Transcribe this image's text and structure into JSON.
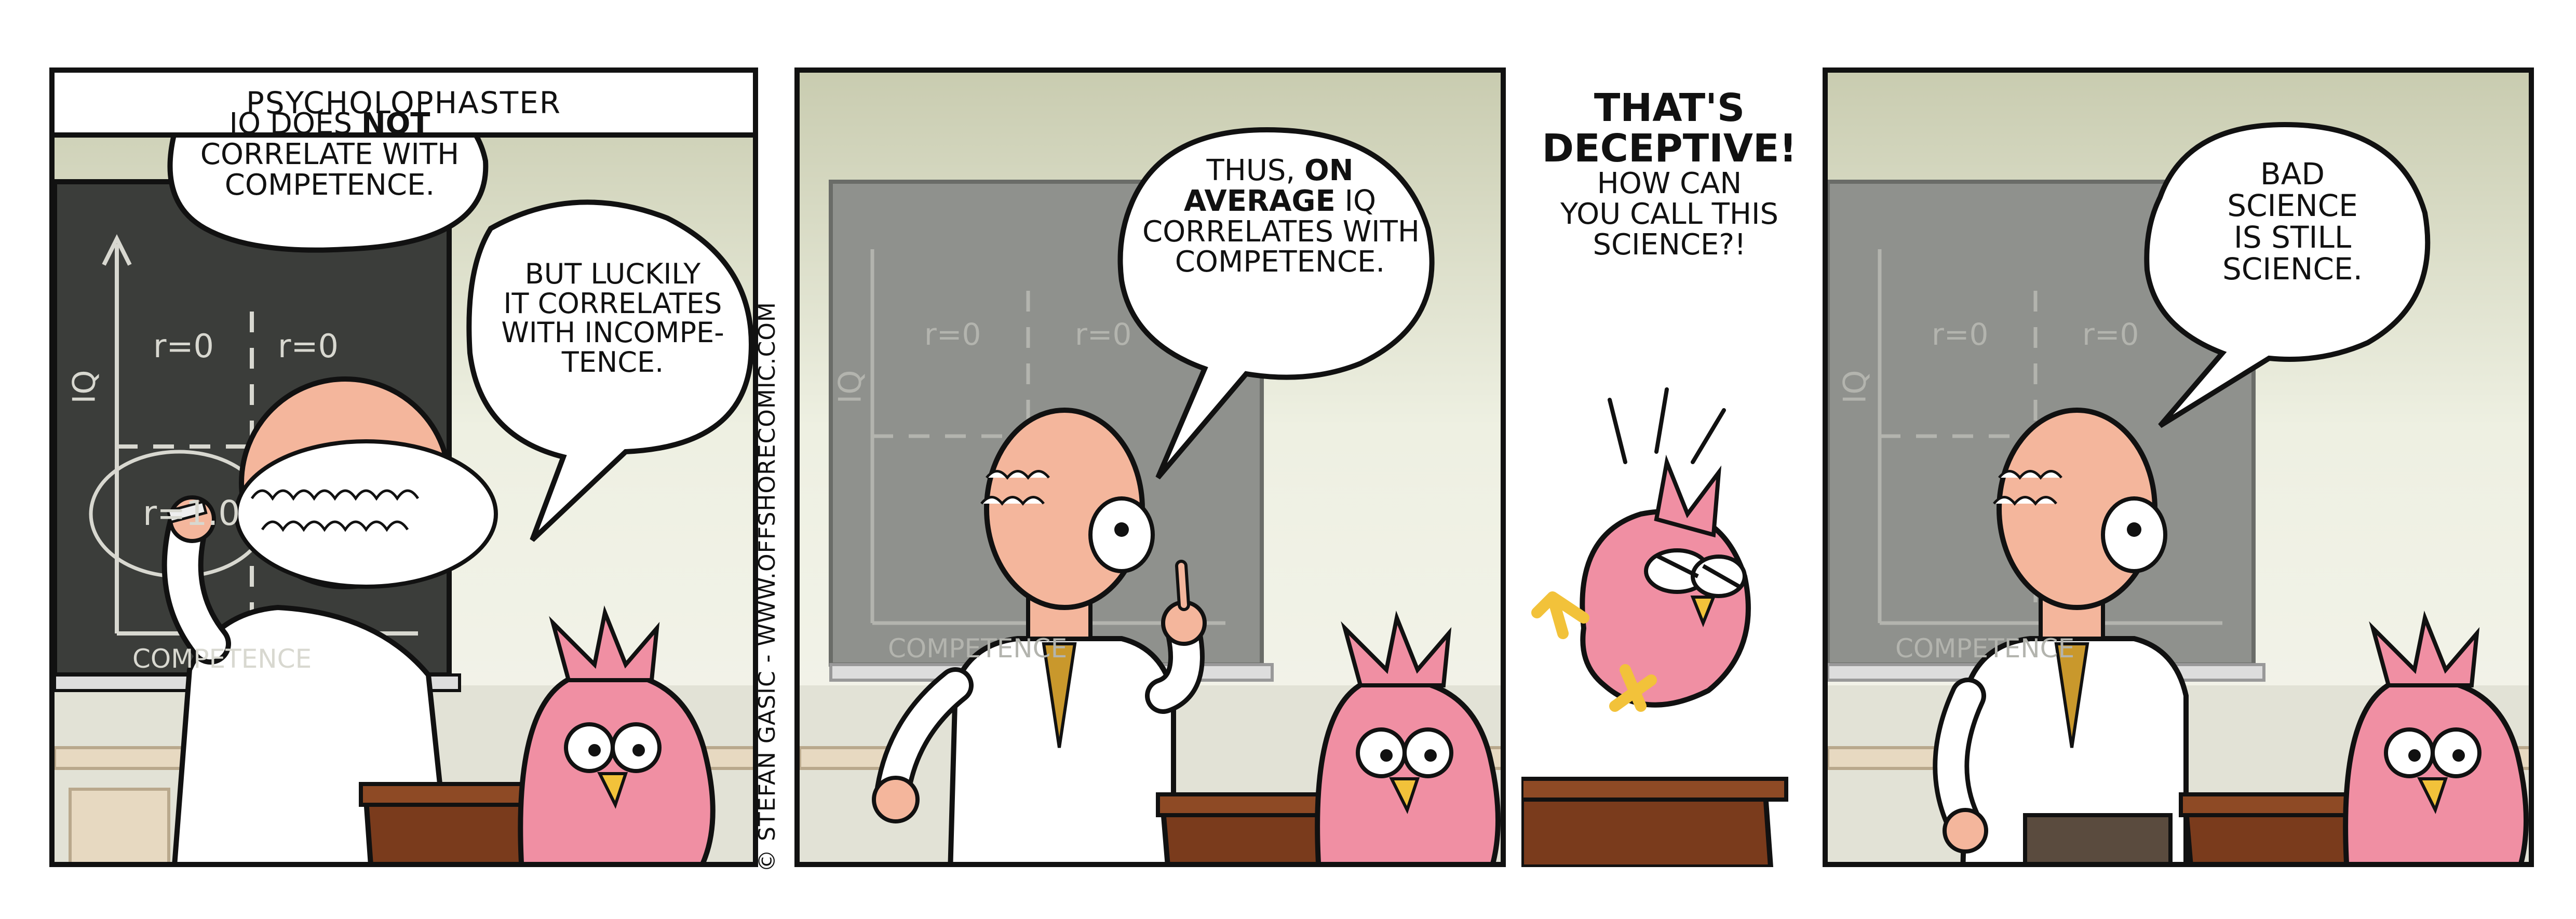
{
  "comic": {
    "title": "PSYCHOLOPHASTER",
    "credit": "© STEFAN GASIC - WWW.OFFSHORECOMIC.COM"
  },
  "panel1": {
    "board": {
      "axis_y": "IQ",
      "axis_x": "COMPETENCE",
      "r0a": "r=0",
      "r0b": "r=0",
      "r10": "r=1.0"
    },
    "bubble1": {
      "line1_a": "IQ DOES ",
      "line1_b": "NOT",
      "line2": "CORRELATE WITH",
      "line3": "COMPETENCE."
    },
    "bubble2": {
      "line1": "BUT LUCKILY",
      "line2": "IT CORRELATES",
      "line3": "WITH INCOMPE-",
      "line4": "TENCE."
    }
  },
  "panel2": {
    "board": {
      "axis_y": "IQ",
      "axis_x": "COMPETENCE",
      "r0a": "r=0",
      "r0b": "r=0"
    },
    "bubble": {
      "line1_a": "THUS, ",
      "line1_b": "ON",
      "line2_a": "AVERAGE",
      "line2_b": " IQ",
      "line3": "CORRELATES WITH",
      "line4": "COMPETENCE."
    }
  },
  "panel3": {
    "shout": {
      "line1": "THAT'S",
      "line2": "DECEPTIVE!",
      "line3": "HOW CAN",
      "line4": "YOU CALL THIS",
      "line5": "SCIENCE?!"
    }
  },
  "panel4": {
    "board": {
      "axis_y": "IQ",
      "axis_x": "COMPETENCE",
      "r0a": "r=0",
      "r0b": "r=0"
    },
    "bubble": {
      "line1": "BAD",
      "line2": "SCIENCE",
      "line3": "IS STILL",
      "line4": "SCIENCE."
    }
  },
  "colors": {
    "bird_pink": "#f08fa3",
    "skin": "#f4b69c",
    "chalkboard": "#3b3d3a",
    "podium": "#7a3b1c",
    "tie": "#c9982c",
    "trousers": "#5a4b3e"
  }
}
